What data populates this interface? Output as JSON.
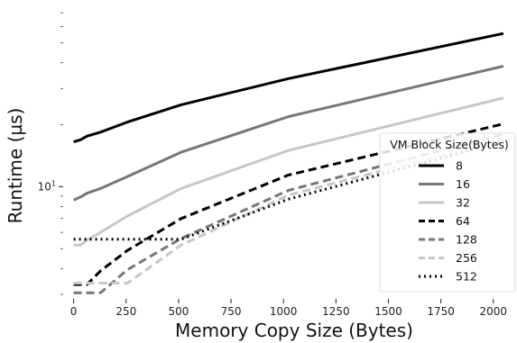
{
  "chart_data": {
    "type": "line",
    "title": "",
    "xlabel": "Memory Copy Size (Bytes)",
    "ylabel": "Runtime (µs)",
    "x_scale": "linear",
    "y_scale": "log",
    "xlim": [
      -50,
      2100
    ],
    "ylim": [
      2.85,
      76
    ],
    "x_ticks": [
      0,
      250,
      500,
      750,
      1000,
      1250,
      1500,
      1750,
      2000
    ],
    "x_tick_labels": [
      "0",
      "250",
      "500",
      "750",
      "1000",
      "1250",
      "1500",
      "1750",
      "2000"
    ],
    "y_ticks": [
      10
    ],
    "y_tick_labels": [
      "10"
    ],
    "grid": false,
    "legend": {
      "title": "VM Block Size(Bytes)",
      "placement": "lower-right"
    },
    "series": [
      {
        "name": "8",
        "color": "#000000",
        "dash": "solid",
        "x": [
          0,
          32,
          64,
          128,
          256,
          512,
          1024,
          2048
        ],
        "y": [
          16.5,
          16.9,
          17.6,
          18.4,
          20.6,
          25.0,
          33.5,
          55.5
        ]
      },
      {
        "name": "16",
        "color": "#777777",
        "dash": "solid",
        "x": [
          0,
          32,
          64,
          128,
          256,
          512,
          1024,
          2048
        ],
        "y": [
          8.6,
          8.9,
          9.3,
          9.8,
          11.2,
          14.7,
          21.9,
          38.5
        ]
      },
      {
        "name": "32",
        "color": "#c7c7c7",
        "dash": "solid",
        "x": [
          0,
          32,
          64,
          128,
          256,
          512,
          1024,
          2048
        ],
        "y": [
          5.2,
          5.2,
          5.5,
          6.0,
          7.2,
          9.8,
          15.0,
          27.0
        ]
      },
      {
        "name": "64",
        "color": "#000000",
        "dash": "dashed",
        "x": [
          0,
          32,
          64,
          128,
          256,
          512,
          1024,
          2048
        ],
        "y": [
          3.35,
          3.35,
          3.35,
          3.9,
          4.9,
          7.0,
          11.4,
          20.2
        ]
      },
      {
        "name": "128",
        "color": "#777777",
        "dash": "dashed",
        "x": [
          0,
          32,
          64,
          128,
          256,
          512,
          1024,
          2048
        ],
        "y": [
          3.05,
          3.05,
          3.05,
          3.05,
          3.95,
          5.6,
          9.6,
          18.0
        ]
      },
      {
        "name": "256",
        "color": "#c7c7c7",
        "dash": "dashed",
        "x": [
          0,
          32,
          64,
          128,
          256,
          512,
          1024,
          2048
        ],
        "y": [
          3.4,
          3.4,
          3.4,
          3.4,
          3.4,
          5.2,
          9.1,
          17.0
        ]
      },
      {
        "name": "512",
        "color": "#000000",
        "dash": "dotted",
        "x": [
          0,
          32,
          64,
          128,
          256,
          512,
          1024,
          2048
        ],
        "y": [
          5.55,
          5.55,
          5.55,
          5.55,
          5.55,
          5.55,
          8.7,
          16.6
        ]
      }
    ]
  }
}
